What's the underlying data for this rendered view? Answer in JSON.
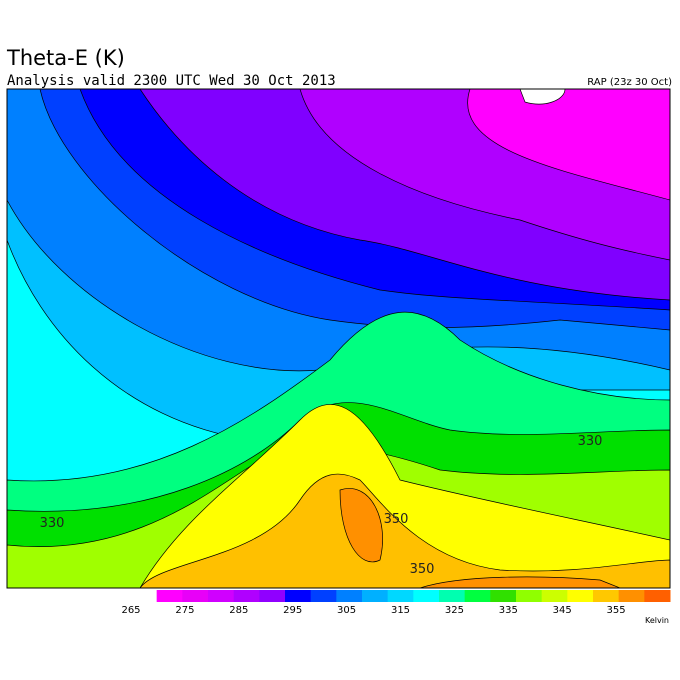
{
  "header": {
    "title": "Theta-E (K)",
    "subtitle": "Analysis valid 2300 UTC Wed 30 Oct 2013",
    "source": "RAP (23z 30 Oct)"
  },
  "contour_labels": [
    "330",
    "330",
    "350",
    "350"
  ],
  "colorbar": {
    "range": [
      265,
      365
    ],
    "ticks": [
      265,
      275,
      285,
      295,
      305,
      315,
      325,
      335,
      345,
      355
    ],
    "units": "Kelvin",
    "colors": [
      "#ffffff",
      "#ff00ff",
      "#e800f8",
      "#d000ff",
      "#b000ff",
      "#9000ff",
      "#0000ff",
      "#0040ff",
      "#0080ff",
      "#00b0ff",
      "#00d8ff",
      "#00ffff",
      "#00ffb0",
      "#00ff40",
      "#30e000",
      "#90ff00",
      "#ccff00",
      "#ffff00",
      "#ffc800",
      "#ff9000",
      "#ff6000"
    ]
  }
}
